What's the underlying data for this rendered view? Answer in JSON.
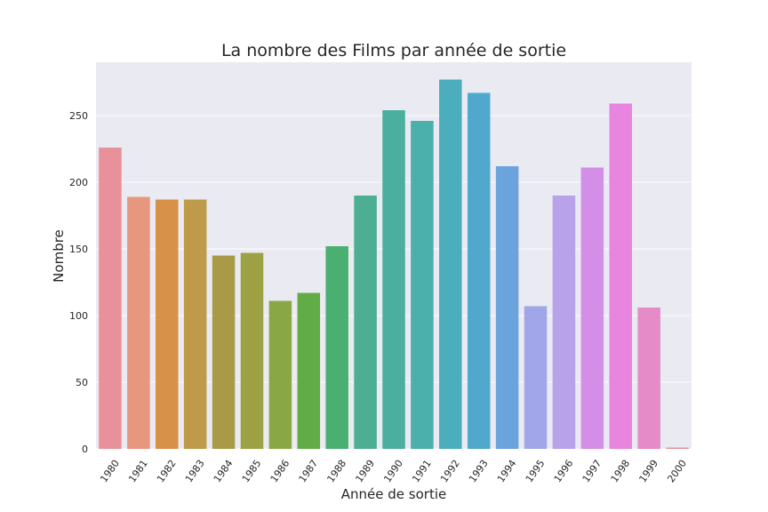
{
  "chart_data": {
    "type": "bar",
    "title": "La nombre des Films par année de sortie",
    "xlabel": "Année de sortie",
    "ylabel": "Nombre",
    "categories": [
      "1980",
      "1981",
      "1982",
      "1983",
      "1984",
      "1985",
      "1986",
      "1987",
      "1988",
      "1989",
      "1990",
      "1991",
      "1992",
      "1993",
      "1994",
      "1995",
      "1996",
      "1997",
      "1998",
      "1999",
      "2000"
    ],
    "values": [
      226,
      189,
      187,
      187,
      145,
      147,
      111,
      117,
      152,
      190,
      254,
      246,
      277,
      267,
      212,
      107,
      190,
      211,
      259,
      106,
      1
    ],
    "ylim": [
      0,
      290
    ],
    "yticks": [
      0,
      50,
      100,
      150,
      200,
      250
    ],
    "grid": true,
    "legend": "none",
    "colors": [
      "#e8919a",
      "#e6977e",
      "#d89149",
      "#bd9b49",
      "#a99a47",
      "#9ca244",
      "#89a745",
      "#62ac47",
      "#4ab072",
      "#4cae92",
      "#4baf9f",
      "#4bafac",
      "#4cadbc",
      "#4fa9cc",
      "#6ba4dc",
      "#a0a6e7",
      "#b8a2ea",
      "#d38fe8",
      "#e886df",
      "#e58cc8",
      "#e8909f"
    ],
    "background": "#eaeaf2"
  }
}
